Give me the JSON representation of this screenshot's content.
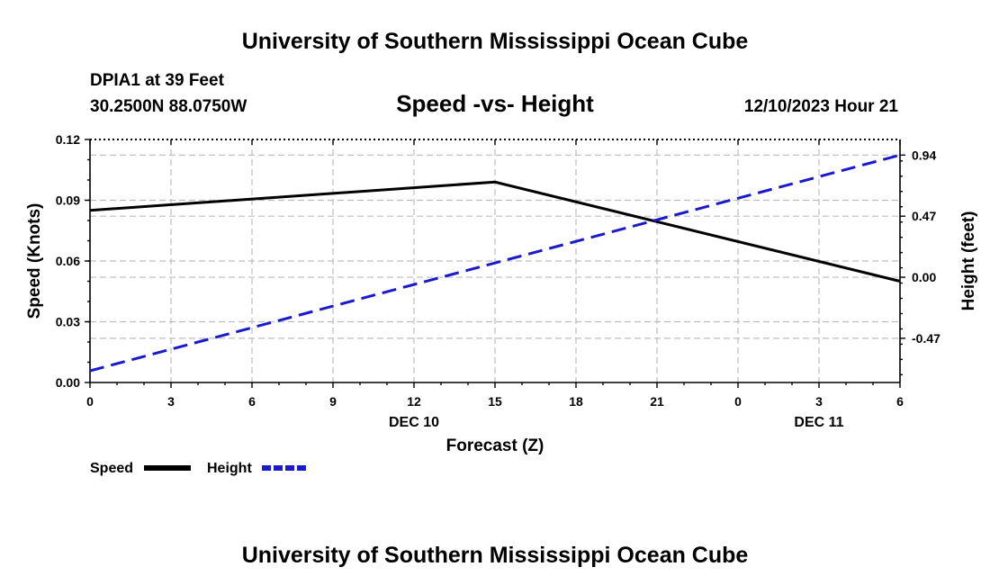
{
  "header": {
    "title": "University of Southern Mississippi Ocean Cube",
    "station": "DPIA1 at 39 Feet",
    "coords": "30.2500N  88.0750W",
    "chart_title": "Speed -vs- Height",
    "datetime": "12/10/2023 Hour 21"
  },
  "footer": {
    "title": "University of Southern Mississippi Ocean Cube"
  },
  "legend": {
    "speed_label": "Speed",
    "height_label": "Height"
  },
  "colors": {
    "speed": "#000000",
    "height": "#1a1acc"
  },
  "chart_data": {
    "type": "line",
    "title": "Speed -vs- Height",
    "xlabel": "Forecast (Z)",
    "ylabel_left": "Speed (Knots)",
    "ylabel_right": "Height (feet)",
    "x": [
      0,
      3,
      6,
      9,
      12,
      15,
      18,
      21,
      24,
      27,
      30
    ],
    "x_tick_labels": [
      "0",
      "3",
      "6",
      "9",
      "12",
      "15",
      "18",
      "21",
      "0",
      "3",
      "6"
    ],
    "x_date_labels": [
      {
        "x": 12,
        "label": "DEC 10"
      },
      {
        "x": 27,
        "label": "DEC 11"
      }
    ],
    "xlim": [
      0,
      30
    ],
    "ylim_left": [
      0,
      0.12
    ],
    "yticks_left": [
      "0.00",
      "0.03",
      "0.06",
      "0.09",
      "0.12"
    ],
    "yticks_left_values": [
      0,
      0.03,
      0.06,
      0.09,
      0.12
    ],
    "ylim_right": [
      -0.81,
      1.06
    ],
    "yticks_right": [
      "-0.47",
      "0.00",
      "0.47",
      "0.94"
    ],
    "yticks_right_values": [
      -0.47,
      0,
      0.47,
      0.94
    ],
    "grid": true,
    "series": [
      {
        "name": "Speed",
        "axis": "left",
        "style": "solid",
        "x": [
          0,
          15,
          30
        ],
        "values": [
          0.085,
          0.099,
          0.05
        ]
      },
      {
        "name": "Height",
        "axis": "right",
        "style": "dashed",
        "x": [
          0,
          30
        ],
        "values": [
          -0.72,
          0.94
        ]
      }
    ]
  }
}
